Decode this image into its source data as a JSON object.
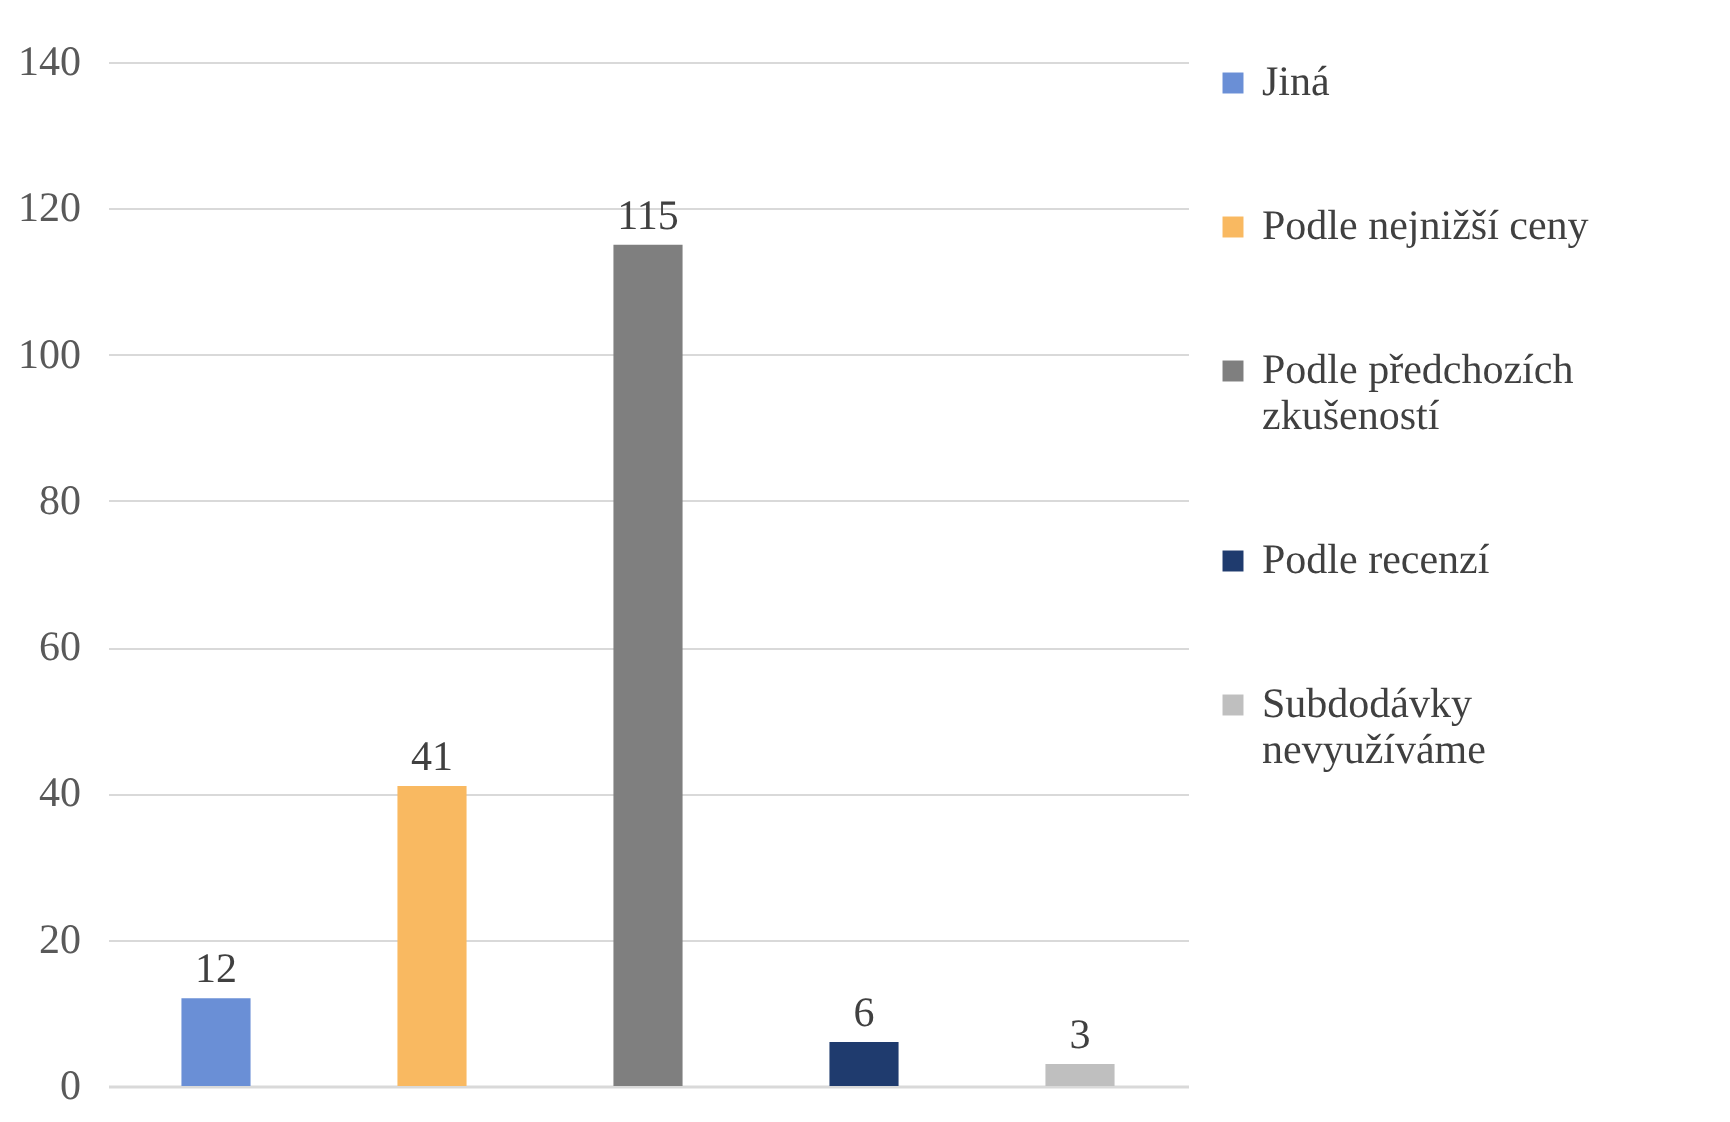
{
  "chart_data": {
    "type": "bar",
    "categories": [
      null,
      null,
      null,
      null,
      null
    ],
    "series": [
      {
        "name": "Jiná",
        "color": "#6a8fd6",
        "values": [
          12,
          null,
          null,
          null,
          null
        ]
      },
      {
        "name": "Podle nejnižší ceny",
        "color": "#f9b961",
        "values": [
          null,
          41,
          null,
          null,
          null
        ]
      },
      {
        "name": "Podle předchozích zkušeností",
        "color": "#7f7f7f",
        "values": [
          null,
          null,
          115,
          null,
          null
        ]
      },
      {
        "name": "Podle recenzí",
        "color": "#1f3b6e",
        "values": [
          null,
          null,
          null,
          6,
          null
        ]
      },
      {
        "name": "Subdodávky nevyužíváme",
        "color": "#bfbfbf",
        "values": [
          null,
          null,
          null,
          null,
          3
        ]
      }
    ],
    "ylim": [
      0,
      140
    ],
    "yticks": [
      0,
      20,
      40,
      60,
      80,
      100,
      120,
      140
    ],
    "grid": "y",
    "legend": "right",
    "tick_labels": "y",
    "data_labels": true
  }
}
